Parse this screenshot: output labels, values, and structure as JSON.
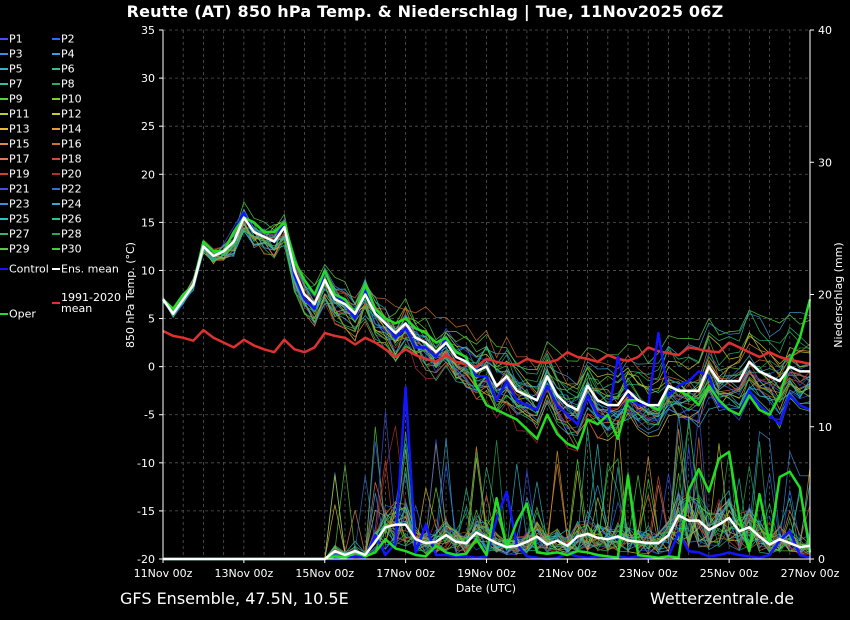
{
  "title": "Reutte  (AT)  850 hPa Temp. & Niederschlag | Tue, 11Nov2025 06Z",
  "footer": {
    "model": "GFS Ensemble, 47.5N, 10.5E",
    "site": "Wetterzentrale.de"
  },
  "legend": [
    {
      "label": "P1",
      "color": "#3a52ff"
    },
    {
      "label": "P2",
      "color": "#2b6cff"
    },
    {
      "label": "P3",
      "color": "#3b8fe0"
    },
    {
      "label": "P4",
      "color": "#3aa0d8"
    },
    {
      "label": "P5",
      "color": "#2fb5c5"
    },
    {
      "label": "P6",
      "color": "#2ebf8a"
    },
    {
      "label": "P7",
      "color": "#2ec2a0"
    },
    {
      "label": "P8",
      "color": "#28b060"
    },
    {
      "label": "P9",
      "color": "#55d040"
    },
    {
      "label": "P10",
      "color": "#78d030"
    },
    {
      "label": "P11",
      "color": "#b8d030"
    },
    {
      "label": "P12",
      "color": "#c8c830"
    },
    {
      "label": "P13",
      "color": "#e0c030"
    },
    {
      "label": "P14",
      "color": "#e0a030"
    },
    {
      "label": "P15",
      "color": "#e08c40"
    },
    {
      "label": "P16",
      "color": "#d07030"
    },
    {
      "label": "P17",
      "color": "#e07a50"
    },
    {
      "label": "P18",
      "color": "#c85030"
    },
    {
      "label": "P19",
      "color": "#d04030"
    },
    {
      "label": "P20",
      "color": "#b03030"
    },
    {
      "label": "P21",
      "color": "#4050e0"
    },
    {
      "label": "P22",
      "color": "#3070d0"
    },
    {
      "label": "P23",
      "color": "#3a90d8"
    },
    {
      "label": "P24",
      "color": "#3aa8c8"
    },
    {
      "label": "P25",
      "color": "#30c0c0"
    },
    {
      "label": "P26",
      "color": "#30c090"
    },
    {
      "label": "P27",
      "color": "#30b870"
    },
    {
      "label": "P28",
      "color": "#28a850"
    },
    {
      "label": "P29",
      "color": "#60c840"
    },
    {
      "label": "P30",
      "color": "#40d030"
    },
    {
      "label": "Control",
      "color": "#1414ff"
    },
    {
      "label": "Ens. mean",
      "color": "#ffffff"
    },
    {
      "label": "Oper",
      "color": "#22dd22"
    },
    {
      "label": "1991-2020 mean",
      "color": "#e03030"
    }
  ],
  "chart_data": {
    "type": "line",
    "x_ticks": [
      "11Nov 00z",
      "13Nov 00z",
      "15Nov 00z",
      "17Nov 00z",
      "19Nov 00z",
      "21Nov 00z",
      "23Nov 00z",
      "25Nov 00z",
      "27Nov 00z"
    ],
    "xlabel": "Date (UTC)",
    "ylabel": "850 hPa Temp. (°C)",
    "ylabel_right": "Niederschlag (mm)",
    "ylim": [
      -20,
      35
    ],
    "ylim_right": [
      0,
      40
    ],
    "y_ticks": [
      -20,
      -15,
      -10,
      -5,
      0,
      5,
      10,
      15,
      20,
      25,
      30,
      35
    ],
    "y_ticks_right": [
      0,
      10,
      20,
      30,
      40
    ],
    "grid": true,
    "time_step_hours": 6,
    "temperature_series": [
      {
        "name": "Ens. mean",
        "color": "#ffffff",
        "width": 2.5,
        "values": [
          7,
          5.5,
          7,
          8.5,
          12.5,
          11.5,
          12,
          13,
          15.5,
          14,
          13.5,
          13,
          14.5,
          10,
          7.5,
          6.5,
          9,
          7,
          6.5,
          5.5,
          7.5,
          5.5,
          4.5,
          3.5,
          4.5,
          3,
          2.5,
          1.5,
          2.5,
          1,
          0.5,
          -0.5,
          0,
          -2,
          -1,
          -2.5,
          -3,
          -3.5,
          -1,
          -3,
          -4,
          -4.5,
          -2,
          -3.5,
          -4,
          -4,
          -2.5,
          -3.5,
          -4,
          -4,
          -2,
          -2.5,
          -2.5,
          -2.5,
          0,
          -1.5,
          -1.5,
          -1.5,
          0.5,
          -0.5,
          -1,
          -1.5,
          0,
          -0.5,
          -0.5
        ]
      },
      {
        "name": "Oper",
        "color": "#22dd22",
        "width": 2.5,
        "values": [
          7,
          6,
          7.5,
          8.5,
          13,
          12,
          12,
          14,
          15.5,
          15,
          14,
          14,
          15,
          11,
          9,
          7.5,
          10,
          7.5,
          7,
          5.5,
          8.5,
          6,
          5,
          4.5,
          5,
          4,
          3.5,
          2.5,
          3,
          1.5,
          1,
          -2,
          -4,
          -4.5,
          -5,
          -5.5,
          -6.5,
          -7.5,
          -5,
          -7,
          -8,
          -8.5,
          -5.5,
          -6,
          -5,
          -7.5,
          -3.5,
          -3.5,
          -4,
          -4.5,
          -2,
          -2.5,
          -3,
          -4,
          -2,
          -3.5,
          -4.5,
          -5,
          -3,
          -4.5,
          -5,
          -3,
          0.5,
          3,
          7
        ]
      },
      {
        "name": "Control",
        "color": "#1414ff",
        "width": 2.5,
        "values": [
          7,
          6,
          7.5,
          8.5,
          13,
          12,
          12,
          14,
          16,
          14,
          13.5,
          13,
          15,
          9.5,
          7,
          6,
          10,
          7.5,
          6.5,
          5,
          8,
          5.5,
          4.5,
          3,
          4,
          2,
          2,
          1,
          3,
          1,
          0.5,
          -1,
          -1,
          -3.5,
          -1.5,
          -3.5,
          -4,
          -4.5,
          -2,
          -4,
          -5,
          -6,
          -3,
          -5,
          -5.5,
          1,
          -3,
          -4,
          -4,
          3.5,
          -3,
          -2,
          -1.5,
          -0.5,
          -1,
          -4,
          -4.5,
          -5,
          -2.5,
          -4,
          -5,
          -6,
          -3,
          -4,
          -4.5
        ]
      },
      {
        "name": "1991-2020 mean",
        "color": "#e03030",
        "width": 2.5,
        "values": [
          3.7,
          3.2,
          3,
          2.7,
          3.8,
          3,
          2.5,
          2,
          2.8,
          2.2,
          1.8,
          1.5,
          2.8,
          1.8,
          1.5,
          2,
          3.5,
          3.2,
          3,
          2.3,
          3,
          2.5,
          1.8,
          1,
          1.8,
          1.2,
          0.8,
          0.5,
          1.2,
          0.5,
          0.2,
          0,
          0.8,
          0.5,
          0.3,
          0.2,
          0.8,
          0.5,
          0.4,
          0.7,
          1.5,
          1,
          0.8,
          0.5,
          1.2,
          0.8,
          0.6,
          1,
          2,
          1.6,
          1.4,
          1.2,
          2,
          1.8,
          1.6,
          1.5,
          2.5,
          2,
          1.5,
          1,
          1.5,
          1,
          0.7,
          0.5,
          0.3
        ]
      }
    ],
    "precip_series": [
      {
        "name": "Ens. mean",
        "color": "#ffffff",
        "width": 2.5,
        "values": [
          0,
          0,
          0,
          0,
          0,
          0,
          0,
          0,
          0,
          0,
          0,
          0,
          0,
          0,
          0,
          0,
          0,
          0.6,
          0.3,
          0.6,
          0.3,
          1.3,
          2.4,
          2.6,
          2.6,
          1.5,
          1.2,
          1.3,
          1.8,
          1.3,
          1.2,
          2,
          1.6,
          1.2,
          0.9,
          1,
          1.3,
          1.7,
          1.1,
          1.4,
          1,
          1.7,
          1.9,
          1.6,
          1.5,
          1.7,
          1.4,
          1.3,
          1.2,
          1.2,
          1.8,
          3.3,
          2.9,
          2.9,
          2.2,
          2.6,
          3.1,
          2.1,
          2.4,
          1.7,
          1.1,
          1.5,
          1.2,
          0.9,
          1
        ]
      },
      {
        "name": "Oper",
        "color": "#22dd22",
        "width": 2.5,
        "values": [
          0,
          0,
          0,
          0,
          0,
          0,
          0,
          0,
          0,
          0,
          0,
          0,
          0,
          0,
          0,
          0,
          0,
          0.2,
          0.1,
          0.5,
          0.2,
          0.5,
          1.5,
          0.8,
          0.6,
          0.3,
          0.2,
          1,
          0.5,
          0.3,
          0.4,
          1.5,
          0.3,
          4.6,
          0.8,
          2.8,
          4.2,
          0.5,
          0.4,
          0.5,
          0.3,
          0.6,
          0.5,
          0.3,
          0.2,
          0.1,
          6.3,
          0.3,
          0.2,
          0.1,
          0.2,
          0.1,
          5.2,
          6.8,
          5.1,
          7.6,
          8.1,
          3.2,
          0.6,
          4.9,
          1.1,
          6.2,
          6.6,
          5.4,
          0.5
        ]
      },
      {
        "name": "Control",
        "color": "#1414ff",
        "width": 2.5,
        "values": [
          0,
          0,
          0,
          0,
          0,
          0,
          0,
          0,
          0,
          0,
          0,
          0,
          0,
          0,
          0,
          0,
          0,
          0,
          0,
          0.2,
          0.1,
          1.8,
          0.3,
          1.2,
          13,
          0.5,
          2.6,
          0.3,
          0.3,
          0.2,
          0.2,
          0.1,
          0.2,
          3,
          5.1,
          1.1,
          0.2,
          0.1,
          0,
          0.1,
          0.4,
          0.2,
          0.1,
          0.2,
          0.1,
          0.2,
          0.1,
          0.2,
          0.1,
          0.1,
          0.2,
          2,
          0.6,
          0.5,
          0.2,
          0.3,
          0.5,
          0.3,
          0.2,
          0.1,
          0.3,
          1.4,
          2.1,
          0.3,
          0.1
        ]
      }
    ]
  }
}
